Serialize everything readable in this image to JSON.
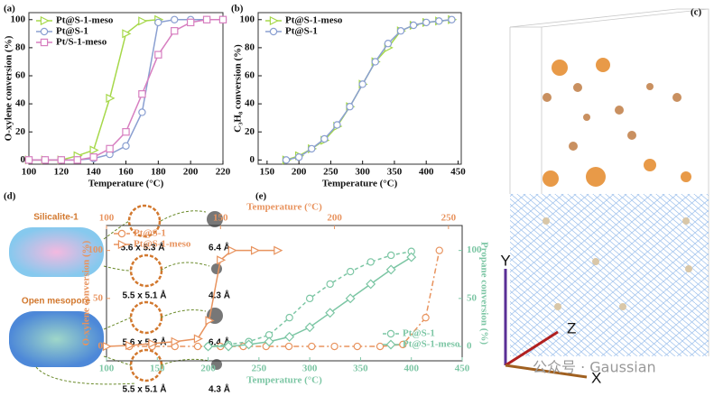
{
  "chart_data": [
    {
      "type": "line",
      "panel_label": "(a)",
      "xlabel": "Temperature (°C)",
      "ylabel": "O-xylene conversion (%)",
      "xlim": [
        100,
        220
      ],
      "xticks": [
        100,
        120,
        140,
        160,
        180,
        200,
        220
      ],
      "ylim": [
        -3,
        105
      ],
      "yticks": [
        0,
        20,
        40,
        60,
        80,
        100
      ],
      "legend": "upper left",
      "series": [
        {
          "name": "Pt@S-1-meso",
          "color": "#a6d84a",
          "marker": "triangle",
          "x": [
            100,
            110,
            120,
            130,
            140,
            150,
            160,
            170,
            180
          ],
          "values": [
            0,
            0,
            0,
            3,
            7,
            44,
            90,
            99,
            100
          ]
        },
        {
          "name": "Pt@S-1",
          "color": "#8a9fd1",
          "marker": "circle",
          "x": [
            100,
            110,
            120,
            130,
            140,
            150,
            160,
            170,
            180,
            190,
            200,
            210,
            220
          ],
          "values": [
            0,
            0,
            0,
            0,
            1,
            4,
            10,
            34,
            98,
            100,
            100,
            100,
            100
          ]
        },
        {
          "name": "Pt/S-1-meso",
          "color": "#d77fc0",
          "marker": "square",
          "x": [
            100,
            110,
            120,
            130,
            140,
            150,
            160,
            170,
            180,
            190,
            200,
            210,
            220
          ],
          "values": [
            0,
            0,
            0,
            0,
            2,
            8,
            20,
            47,
            75,
            92,
            98,
            100,
            100
          ]
        }
      ]
    },
    {
      "type": "line",
      "panel_label": "(b)",
      "xlabel": "Temperature (°C)",
      "ylabel": "C₃H₈ conversion (%)",
      "xlim": [
        136,
        455
      ],
      "xticks": [
        150,
        200,
        250,
        300,
        350,
        400,
        450
      ],
      "ylim": [
        -3,
        105
      ],
      "yticks": [
        0,
        20,
        40,
        60,
        80,
        100
      ],
      "legend": "upper left",
      "series": [
        {
          "name": "Pt@S-1-meso",
          "color": "#a6d84a",
          "marker": "triangle",
          "x": [
            180,
            200,
            220,
            240,
            260,
            280,
            300,
            320,
            340,
            360,
            380,
            400,
            420,
            440
          ],
          "values": [
            0,
            3,
            8,
            14,
            24,
            38,
            54,
            70,
            80,
            92,
            96,
            98,
            99,
            100
          ]
        },
        {
          "name": "Pt@S-1",
          "color": "#8a9fd1",
          "marker": "circle",
          "x": [
            180,
            200,
            220,
            240,
            260,
            280,
            300,
            320,
            340,
            360,
            380,
            400,
            420,
            440
          ],
          "values": [
            0,
            2,
            8,
            15,
            25,
            38,
            54,
            70,
            83,
            92,
            96,
            98,
            99,
            100
          ]
        }
      ]
    },
    {
      "type": "line",
      "panel_label": "(e)",
      "xlabel": "Temperature (°C)",
      "x2label": "Temperature (°C)",
      "ylabel": "O-xylene conversion (%)",
      "y2label": "Propane conversion (%)",
      "xlim": [
        100,
        450
      ],
      "xticks": [
        100,
        150,
        200,
        250,
        300,
        350,
        400,
        450
      ],
      "x2lim": [
        100,
        256
      ],
      "x2ticks": [
        100,
        150,
        200,
        250
      ],
      "ylim": [
        -15,
        126
      ],
      "yticks": [
        0,
        50,
        100
      ],
      "y2lim": [
        -15,
        126
      ],
      "y2ticks": [
        0,
        50,
        100
      ],
      "axis_colors": {
        "x": "#7cc6a4",
        "x2": "#e8935e",
        "y": "#e8935e",
        "y2": "#7cc6a4"
      },
      "legend": "upper left",
      "legend2": "lower right",
      "series": [
        {
          "name": "Pt@S-1",
          "color": "#e8935e",
          "marker": "circle",
          "dash": "6 3 2 3",
          "xaxis": "x2",
          "x": [
            110,
            120,
            130,
            140,
            150,
            160,
            170,
            180,
            190,
            200,
            210,
            220,
            230,
            240,
            246
          ],
          "values": [
            0,
            0,
            0,
            0,
            0,
            0,
            0,
            0,
            0,
            0,
            0,
            0,
            2,
            30,
            100
          ]
        },
        {
          "name": "Pt@S-1-meso",
          "color": "#e8935e",
          "marker": "triangle",
          "xaxis": "x2",
          "x": [
            100,
            110,
            120,
            130,
            140,
            145,
            150,
            155,
            165,
            175
          ],
          "values": [
            0,
            1,
            3,
            5,
            8,
            27,
            90,
            100,
            100,
            100
          ]
        },
        {
          "name": "Pt@S-1",
          "color": "#7cc6a4",
          "marker": "circle",
          "dash": "4 3",
          "axis": "y2",
          "x": [
            200,
            220,
            240,
            260,
            280,
            300,
            320,
            340,
            360,
            380,
            400
          ],
          "values": [
            0,
            2,
            5,
            12,
            30,
            50,
            65,
            78,
            88,
            95,
            99
          ]
        },
        {
          "name": "Pt@S-1-meso",
          "color": "#7cc6a4",
          "marker": "diamond",
          "axis": "y2",
          "x": [
            200,
            220,
            240,
            260,
            280,
            300,
            320,
            340,
            360,
            380,
            400
          ],
          "values": [
            0,
            0,
            2,
            5,
            10,
            20,
            35,
            50,
            65,
            80,
            93
          ]
        }
      ]
    }
  ],
  "panel_c": {
    "label": "(c)",
    "axis_y": "Y",
    "axis_z": "Z",
    "axis_x": "X",
    "watermark": "公众号 · Gaussian"
  },
  "panel_d": {
    "label": "(d)",
    "top_title": "Silicalite-1",
    "bottom_title": "Open mesopore",
    "pores": [
      "5.6 x 5.3 Å",
      "5.5 x 5.1 Å",
      "5.6 x 5.3 Å",
      "5.5 x 5.1 Å"
    ],
    "molecules": [
      "6.4 Å",
      "4.3 Å",
      "6.4 Å",
      "4.3 Å"
    ]
  }
}
